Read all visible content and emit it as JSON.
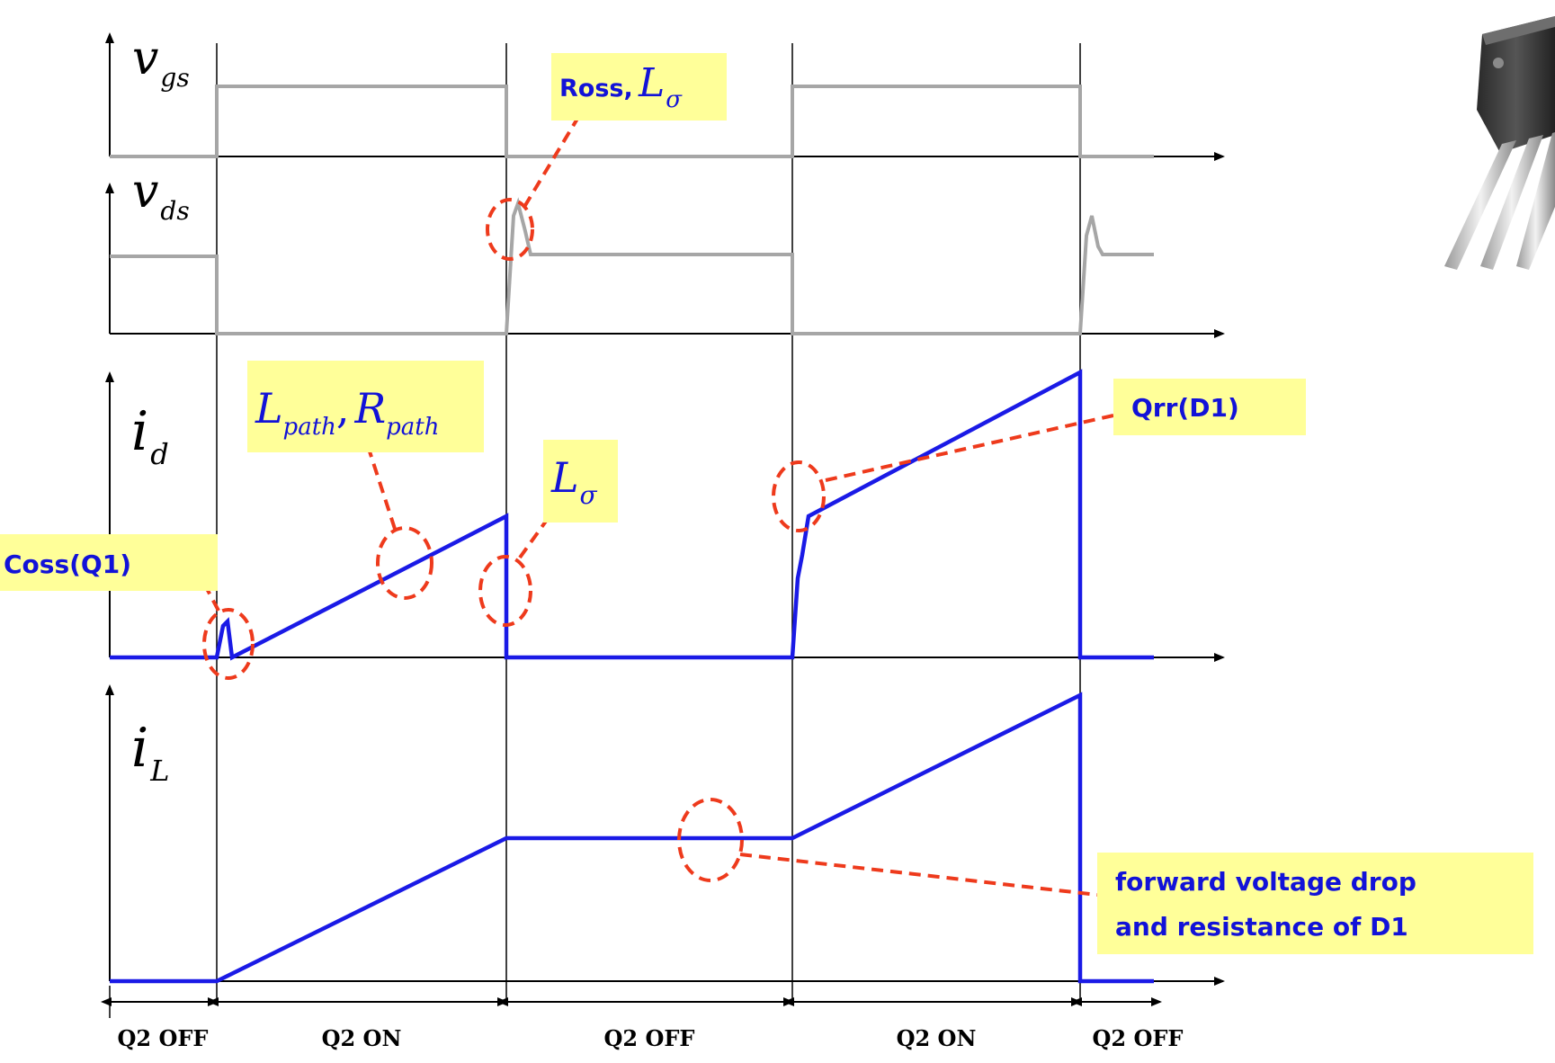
{
  "waveforms": {
    "vgs": {
      "symbol": "v",
      "subscript": "gs"
    },
    "vds": {
      "symbol": "v",
      "subscript": "ds"
    },
    "id": {
      "symbol": "i",
      "subscript": "d"
    },
    "iL": {
      "symbol": "i",
      "subscript": "L"
    }
  },
  "annotations": {
    "ross": {
      "text": "Ross,",
      "symbol": "L",
      "subscript": "σ"
    },
    "lpath": {
      "symbol1": "L",
      "sub1": "path",
      "comma": ",",
      "symbol2": "R",
      "sub2": "path"
    },
    "lsigma": {
      "symbol": "L",
      "subscript": "σ"
    },
    "coss": "Coss(Q1)",
    "qrr": "Qrr(D1)",
    "forward_line1": "forward voltage drop",
    "forward_line2": "and resistance of D1"
  },
  "phases": [
    "Q2 OFF",
    "Q2 ON",
    "Q2 OFF",
    "Q2 ON",
    "Q2 OFF"
  ],
  "colors": {
    "gate_drain_voltage": "#a6a6a6",
    "current": "#1a1ae6",
    "callout": "#ee3a1c",
    "label_box": "#ffff99"
  },
  "device_image": "igbt-to247-package-icon"
}
